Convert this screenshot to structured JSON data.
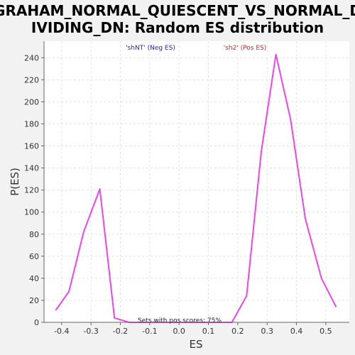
{
  "chart_data": {
    "type": "line",
    "title_lines": [
      "GRAHAM_NORMAL_QUIESCENT_VS_NORMAL_D",
      "IVIDING_DN: Random ES distribution"
    ],
    "xlabel": "ES",
    "ylabel": "P(ES)",
    "xlim": [
      -0.46,
      0.58
    ],
    "ylim": [
      0,
      255
    ],
    "x_ticks": [
      -0.4,
      -0.3,
      -0.2,
      -0.1,
      0.0,
      0.1,
      0.2,
      0.3,
      0.4,
      0.5
    ],
    "x_tick_labels": [
      "-0.4",
      "-0.3",
      "-0.2",
      "-0.1",
      "0.0",
      "0.1",
      "0.2",
      "0.3",
      "0.4",
      "0.5"
    ],
    "y_ticks": [
      0,
      20,
      40,
      60,
      80,
      100,
      120,
      140,
      160,
      180,
      200,
      220,
      240
    ],
    "y_tick_labels": [
      "0",
      "20",
      "40",
      "60",
      "80",
      "100",
      "120",
      "140",
      "160",
      "180",
      "200",
      "220",
      "240"
    ],
    "grid": true,
    "series": [
      {
        "color": "#ee44ee",
        "x": [
          -0.42,
          -0.375,
          -0.325,
          -0.27,
          -0.22,
          -0.17,
          0.18,
          0.23,
          0.28,
          0.33,
          0.38,
          0.43,
          0.485,
          0.535
        ],
        "y": [
          11,
          28,
          82,
          121,
          4,
          0,
          0,
          24,
          155,
          243,
          184,
          94,
          40,
          14
        ]
      }
    ],
    "legend": [
      {
        "text": "'shNT' (Neg ES)",
        "color": "#2222cc",
        "position": "top-left"
      },
      {
        "text": "'sh2' (Pos ES)",
        "color": "#dd2222",
        "position": "top-right"
      }
    ],
    "annotation": "Sets with pos scores: 75%"
  }
}
